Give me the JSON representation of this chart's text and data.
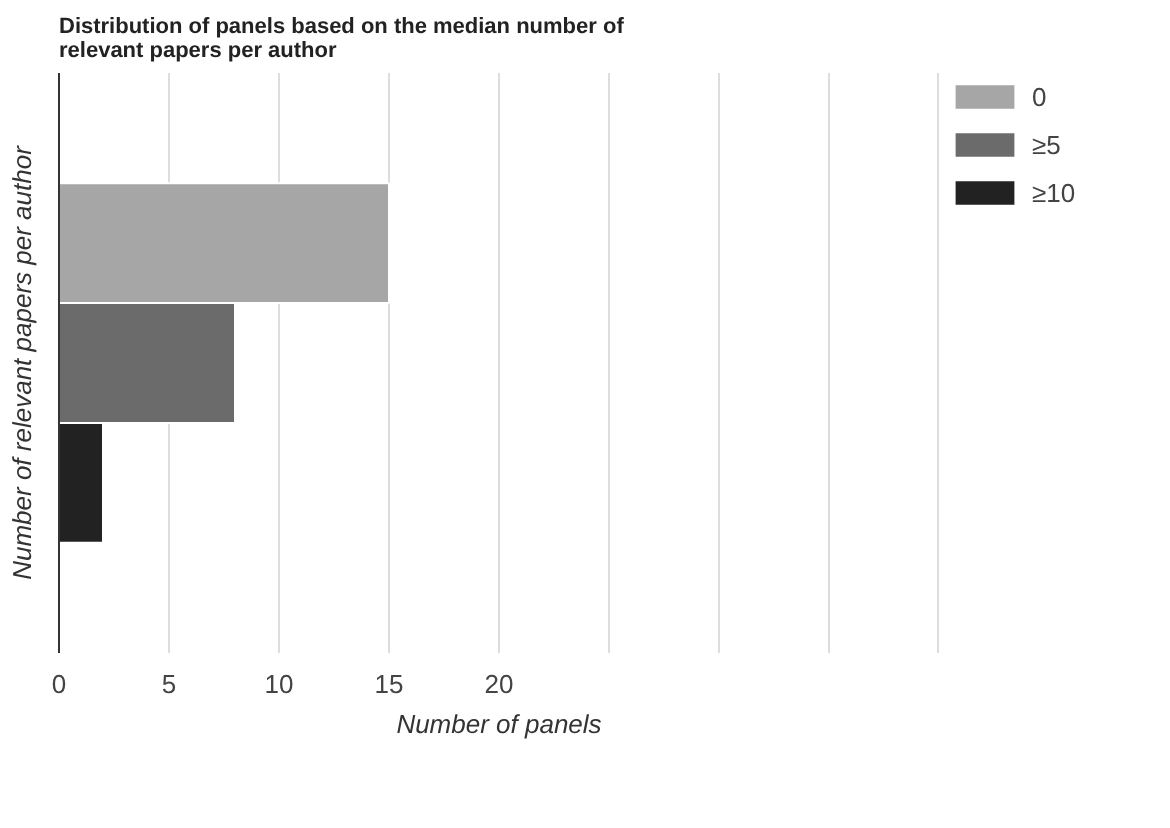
{
  "chart_data": {
    "type": "bar",
    "orientation": "horizontal",
    "title": "Distribution of panels based on the median number of relevant papers per author",
    "xlabel": "Number of panels",
    "ylabel": "Number of relevant papers per author",
    "categories": [
      null
    ],
    "series": [
      {
        "name": "0",
        "color": "#a6a6a6",
        "values": [
          15
        ]
      },
      {
        "name": "≥5",
        "color": "#6b6b6b",
        "values": [
          8
        ]
      },
      {
        "name": "≥10",
        "color": "#222222",
        "values": [
          2
        ]
      }
    ],
    "xlim": [
      0,
      40
    ],
    "xticks": [
      0,
      5,
      10,
      15,
      20,
      {
        "value": 25,
        "label": null
      },
      {
        "value": 30,
        "label": null
      },
      {
        "value": 35,
        "label": null
      },
      {
        "value": 40,
        "label": null
      }
    ],
    "grid": "x",
    "legend": "top right"
  }
}
